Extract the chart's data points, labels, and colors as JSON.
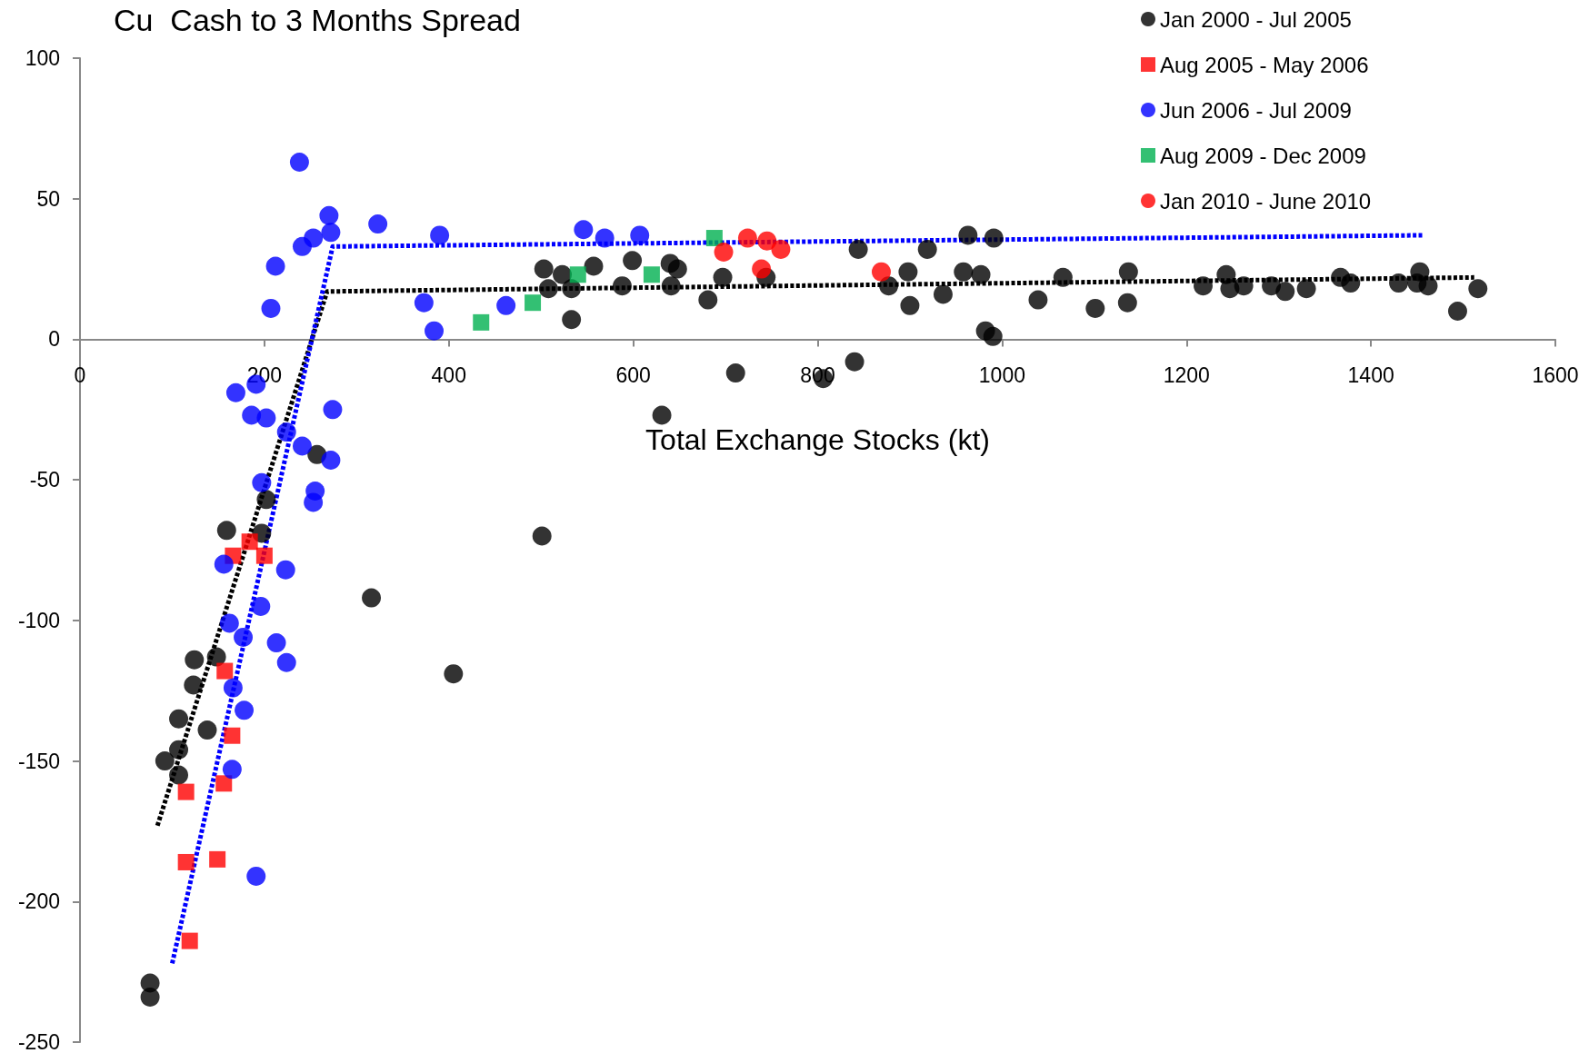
{
  "chart_data": {
    "type": "scatter",
    "title": "Cu  Cash to 3 Months Spread",
    "xlabel": "Total Exchange Stocks (kt)",
    "xlim": [
      0,
      1600
    ],
    "xticks": [
      0,
      200,
      400,
      600,
      800,
      1000,
      1200,
      1400,
      1600
    ],
    "ylim": [
      -250,
      100
    ],
    "yticks": [
      -250,
      -200,
      -150,
      -100,
      -50,
      0,
      50,
      100
    ],
    "grid": false,
    "legend": "top right",
    "series": [
      {
        "name": "Jan 2000 - Jul 2005",
        "color": "#000000",
        "marker": "circle",
        "x": [
          76,
          76,
          92,
          107,
          107,
          107,
          123,
          124,
          138,
          148,
          159,
          197,
          202,
          257,
          316,
          405,
          501,
          503,
          508,
          523,
          533,
          533,
          557,
          588,
          599,
          640,
          641,
          648,
          681,
          697,
          711,
          744,
          806,
          840,
          844,
          631,
          877,
          898,
          900,
          919,
          936,
          958,
          963,
          977,
          982,
          990,
          991,
          1039,
          1066,
          1101,
          1137,
          1136,
          1218,
          1243,
          1247,
          1262,
          1292,
          1307,
          1330,
          1367,
          1378,
          1430,
          1450,
          1453,
          1462,
          1494,
          1516
        ],
        "values": [
          -229,
          -234,
          -150,
          -146,
          -135,
          -155,
          -123,
          -114,
          -139,
          -113,
          -68,
          -69,
          -57,
          -41,
          -92,
          -119,
          -70,
          25,
          18,
          23,
          7,
          18,
          26,
          19,
          28,
          27,
          19,
          25,
          14,
          22,
          -12,
          22,
          -14,
          -8,
          32,
          -27,
          19,
          24,
          12,
          32,
          16,
          24,
          37,
          23,
          3,
          1,
          36,
          14,
          22,
          11,
          24,
          13,
          19,
          23,
          18,
          19,
          19,
          17,
          18,
          22,
          20,
          20,
          20,
          24,
          19,
          10,
          18
        ]
      },
      {
        "name": "Aug 2005 - May 2006",
        "color": "#ff0000",
        "marker": "square",
        "x": [
          184,
          166,
          200,
          157,
          165,
          115,
          156,
          115,
          149,
          119
        ],
        "values": [
          -72,
          -77,
          -77,
          -118,
          -141,
          -161,
          -158,
          -186,
          -185,
          -214
        ]
      },
      {
        "name": "Jun 2006 - Jul 2009",
        "color": "#0000ff",
        "marker": "circle",
        "x": [
          238,
          270,
          323,
          272,
          253,
          241,
          212,
          207,
          373,
          384,
          390,
          462,
          546,
          569,
          607,
          169,
          191,
          186,
          202,
          274,
          224,
          241,
          272,
          197,
          255,
          253,
          156,
          223,
          196,
          162,
          177,
          213,
          224,
          166,
          178,
          165,
          191
        ],
        "values": [
          63,
          44,
          41,
          38,
          36,
          33,
          26,
          11,
          13,
          3,
          37,
          12,
          39,
          36,
          37,
          -19,
          -16,
          -27,
          -28,
          -25,
          -33,
          -38,
          -43,
          -51,
          -54,
          -58,
          -80,
          -82,
          -95,
          -101,
          -106,
          -108,
          -115,
          -124,
          -132,
          -153,
          -191
        ]
      },
      {
        "name": "Aug 2009 - Dec 2009",
        "color": "#00b050",
        "marker": "square",
        "x": [
          435,
          491,
          540,
          620,
          688
        ],
        "values": [
          6,
          13,
          23,
          23,
          36
        ]
      },
      {
        "name": "Jan 2010 - June 2010",
        "color": "#ff0000",
        "marker": "circle",
        "x": [
          698,
          724,
          745,
          760,
          739,
          869
        ],
        "values": [
          31,
          36,
          35,
          32,
          25,
          24
        ]
      },
      {
        "type": "line",
        "color": "#000000",
        "marker": "none",
        "line_style": "dashed",
        "x": [
          84,
          268,
          1512
        ],
        "values": [
          -173,
          17,
          22
        ]
      },
      {
        "type": "line",
        "color": "#0000ff",
        "marker": "none",
        "line_style": "dashed",
        "x": [
          100,
          274,
          1457
        ],
        "values": [
          -222,
          33,
          37
        ]
      }
    ]
  }
}
